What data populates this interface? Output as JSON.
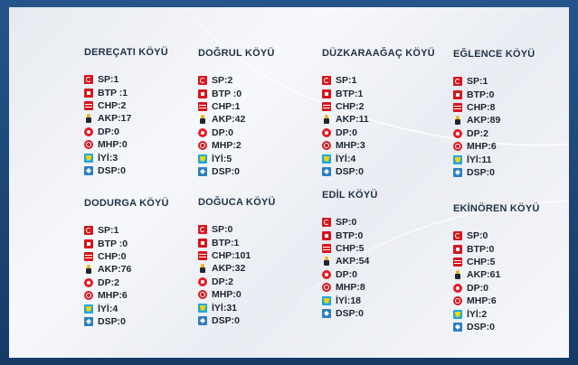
{
  "colors": {
    "frame": "#1b3f6e",
    "panel": "#eef0f4",
    "title_text": "#1f3347",
    "result_text": "#1c2630"
  },
  "villages": [
    {
      "name": "DEREÇATI KÖYÜ",
      "results": [
        {
          "party": "sp",
          "icon": "sp-logo-icon",
          "text": "SP:1"
        },
        {
          "party": "btp",
          "icon": "btp-logo-icon",
          "text": "BTP :1"
        },
        {
          "party": "chp",
          "icon": "chp-logo-icon",
          "text": "CHP:2"
        },
        {
          "party": "akp",
          "icon": "akp-logo-icon",
          "text": "AKP:17"
        },
        {
          "party": "dp",
          "icon": "dp-logo-icon",
          "text": "DP:0"
        },
        {
          "party": "mhp",
          "icon": "mhp-logo-icon",
          "text": "MHP:0"
        },
        {
          "party": "iyi",
          "icon": "iyi-logo-icon",
          "text": "İYİ:3"
        },
        {
          "party": "dsp",
          "icon": "dsp-logo-icon",
          "text": "DSP:0"
        }
      ]
    },
    {
      "name": "DODURGA KÖYÜ",
      "results": [
        {
          "party": "sp",
          "icon": "sp-logo-icon",
          "text": "SP:1"
        },
        {
          "party": "btp",
          "icon": "btp-logo-icon",
          "text": "BTP :0"
        },
        {
          "party": "chp",
          "icon": "chp-logo-icon",
          "text": "CHP:0"
        },
        {
          "party": "akp",
          "icon": "akp-logo-icon",
          "text": "AKP:76"
        },
        {
          "party": "dp",
          "icon": "dp-logo-icon",
          "text": "DP:2"
        },
        {
          "party": "mhp",
          "icon": "mhp-logo-icon",
          "text": "MHP:6"
        },
        {
          "party": "iyi",
          "icon": "iyi-logo-icon",
          "text": "İYİ:4"
        },
        {
          "party": "dsp",
          "icon": "dsp-logo-icon",
          "text": "DSP:0"
        }
      ]
    },
    {
      "name": "DOĞRUL KÖYÜ",
      "results": [
        {
          "party": "sp",
          "icon": "sp-logo-icon",
          "text": "SP:2"
        },
        {
          "party": "btp",
          "icon": "btp-logo-icon",
          "text": "BTP :0"
        },
        {
          "party": "chp",
          "icon": "chp-logo-icon",
          "text": "CHP:1"
        },
        {
          "party": "akp",
          "icon": "akp-logo-icon",
          "text": "AKP:42"
        },
        {
          "party": "dp",
          "icon": "dp-logo-icon",
          "text": "DP:0"
        },
        {
          "party": "mhp",
          "icon": "mhp-logo-icon",
          "text": "MHP:2"
        },
        {
          "party": "iyi",
          "icon": "iyi-logo-icon",
          "text": "İYİ:5"
        },
        {
          "party": "dsp",
          "icon": "dsp-logo-icon",
          "text": "DSP:0"
        }
      ]
    },
    {
      "name": "DOĞUCA KÖYÜ",
      "results": [
        {
          "party": "sp",
          "icon": "sp-logo-icon",
          "text": "SP:0"
        },
        {
          "party": "btp",
          "icon": "btp-logo-icon",
          "text": "BTP:1"
        },
        {
          "party": "chp",
          "icon": "chp-logo-icon",
          "text": "CHP:101"
        },
        {
          "party": "akp",
          "icon": "akp-logo-icon",
          "text": "AKP:32"
        },
        {
          "party": "dp",
          "icon": "dp-logo-icon",
          "text": "DP:2"
        },
        {
          "party": "mhp",
          "icon": "mhp-logo-icon",
          "text": "MHP:0"
        },
        {
          "party": "iyi",
          "icon": "iyi-logo-icon",
          "text": "İYİ:31"
        },
        {
          "party": "dsp",
          "icon": "dsp-logo-icon",
          "text": "DSP:0"
        }
      ]
    },
    {
      "name": "DÜZKARAAĞAÇ KÖYÜ",
      "results": [
        {
          "party": "sp",
          "icon": "sp-logo-icon",
          "text": "SP:1"
        },
        {
          "party": "btp",
          "icon": "btp-logo-icon",
          "text": "BTP:1"
        },
        {
          "party": "chp",
          "icon": "chp-logo-icon",
          "text": "CHP:2"
        },
        {
          "party": "akp",
          "icon": "akp-logo-icon",
          "text": "AKP:11"
        },
        {
          "party": "dp",
          "icon": "dp-logo-icon",
          "text": "DP:0"
        },
        {
          "party": "mhp",
          "icon": "mhp-logo-icon",
          "text": "MHP:3"
        },
        {
          "party": "iyi",
          "icon": "iyi-logo-icon",
          "text": "İYİ:4"
        },
        {
          "party": "dsp",
          "icon": "dsp-logo-icon",
          "text": "DSP:0"
        }
      ]
    },
    {
      "name": "EDİL KÖYÜ",
      "results": [
        {
          "party": "sp",
          "icon": "sp-logo-icon",
          "text": "SP:0"
        },
        {
          "party": "btp",
          "icon": "btp-logo-icon",
          "text": "BTP:0"
        },
        {
          "party": "chp",
          "icon": "chp-logo-icon",
          "text": "CHP:5"
        },
        {
          "party": "akp",
          "icon": "akp-logo-icon",
          "text": "AKP:54"
        },
        {
          "party": "dp",
          "icon": "dp-logo-icon",
          "text": "DP:0"
        },
        {
          "party": "mhp",
          "icon": "mhp-logo-icon",
          "text": "MHP:8"
        },
        {
          "party": "iyi",
          "icon": "iyi-logo-icon",
          "text": "İYİ:18"
        },
        {
          "party": "dsp",
          "icon": "dsp-logo-icon",
          "text": "DSP:0"
        }
      ]
    },
    {
      "name": "EĞLENCE KÖYÜ",
      "results": [
        {
          "party": "sp",
          "icon": "sp-logo-icon",
          "text": "SP:1"
        },
        {
          "party": "btp",
          "icon": "btp-logo-icon",
          "text": "BTP:0"
        },
        {
          "party": "chp",
          "icon": "chp-logo-icon",
          "text": "CHP:8"
        },
        {
          "party": "akp",
          "icon": "akp-logo-icon",
          "text": "AKP:89"
        },
        {
          "party": "dp",
          "icon": "dp-logo-icon",
          "text": "DP:2"
        },
        {
          "party": "mhp",
          "icon": "mhp-logo-icon",
          "text": "MHP:6"
        },
        {
          "party": "iyi",
          "icon": "iyi-logo-icon",
          "text": "İYİ:11"
        },
        {
          "party": "dsp",
          "icon": "dsp-logo-icon",
          "text": "DSP:0"
        }
      ]
    },
    {
      "name": "EKİNÖREN KÖYÜ",
      "results": [
        {
          "party": "sp",
          "icon": "sp-logo-icon",
          "text": "SP:0"
        },
        {
          "party": "btp",
          "icon": "btp-logo-icon",
          "text": "BTP:0"
        },
        {
          "party": "chp",
          "icon": "chp-logo-icon",
          "text": "CHP:5"
        },
        {
          "party": "akp",
          "icon": "akp-logo-icon",
          "text": "AKP:61"
        },
        {
          "party": "dp",
          "icon": "dp-logo-icon",
          "text": "DP:0"
        },
        {
          "party": "mhp",
          "icon": "mhp-logo-icon",
          "text": "MHP:6"
        },
        {
          "party": "iyi",
          "icon": "iyi-logo-icon",
          "text": "İYİ:2"
        },
        {
          "party": "dsp",
          "icon": "dsp-logo-icon",
          "text": "DSP:0"
        }
      ]
    }
  ]
}
